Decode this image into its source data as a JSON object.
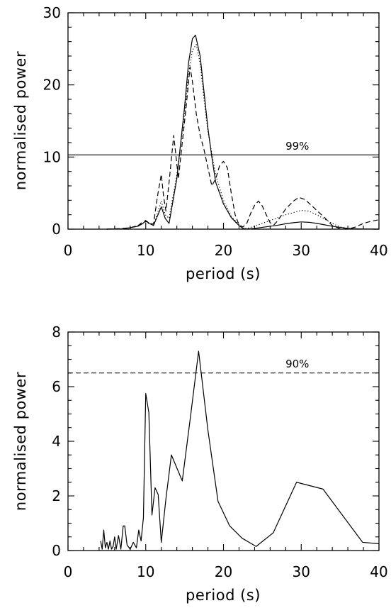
{
  "chart_data": [
    {
      "type": "line",
      "xlabel": "period (s)",
      "ylabel": "normalised power",
      "xlim": [
        0,
        40
      ],
      "ylim": [
        0,
        30
      ],
      "xticks": [
        "0",
        "10",
        "20",
        "30",
        "40"
      ],
      "yticks": [
        "0",
        "10",
        "20",
        "30"
      ],
      "grid": false,
      "legend": "none",
      "annotations": [
        {
          "text": "99%",
          "x": 29.5,
          "y": 11.0
        }
      ],
      "hlines": [
        {
          "y": 10.3,
          "style": "solid"
        }
      ],
      "series": [
        {
          "style": "solid",
          "points": [
            [
              5,
              0
            ],
            [
              7,
              0.05
            ],
            [
              8,
              0.2
            ],
            [
              9,
              0.4
            ],
            [
              9.5,
              0.7
            ],
            [
              10,
              1.1
            ],
            [
              10.5,
              0.8
            ],
            [
              11,
              0.5
            ],
            [
              11.5,
              1.8
            ],
            [
              12,
              3.1
            ],
            [
              12.5,
              1.5
            ],
            [
              13,
              0.8
            ],
            [
              14,
              7
            ],
            [
              15,
              17
            ],
            [
              15.5,
              23
            ],
            [
              16,
              26.4
            ],
            [
              16.4,
              26.9
            ],
            [
              17,
              24
            ],
            [
              17.5,
              19
            ],
            [
              18,
              14
            ],
            [
              18.5,
              10
            ],
            [
              19,
              6.5
            ],
            [
              20,
              3.5
            ],
            [
              21,
              1.6
            ],
            [
              22,
              0.5
            ],
            [
              22.5,
              0.1
            ],
            [
              23,
              0.03
            ],
            [
              24,
              0.1
            ],
            [
              25,
              0.25
            ],
            [
              26,
              0.4
            ],
            [
              27,
              0.55
            ],
            [
              28,
              0.75
            ],
            [
              29,
              0.9
            ],
            [
              30,
              1.0
            ],
            [
              31,
              0.95
            ],
            [
              32,
              0.8
            ],
            [
              33,
              0.6
            ],
            [
              34,
              0.4
            ],
            [
              35,
              0.25
            ],
            [
              36,
              0.1
            ],
            [
              37,
              0.05
            ],
            [
              38,
              0.02
            ],
            [
              39,
              0.01
            ],
            [
              40,
              0
            ]
          ]
        },
        {
          "style": "dotted",
          "points": [
            [
              5,
              0
            ],
            [
              7,
              0.05
            ],
            [
              8,
              0.2
            ],
            [
              9,
              0.5
            ],
            [
              10,
              1.0
            ],
            [
              10.5,
              0.7
            ],
            [
              11,
              0.6
            ],
            [
              11.5,
              2.2
            ],
            [
              12,
              3.9
            ],
            [
              12.5,
              2.0
            ],
            [
              13,
              1.5
            ],
            [
              14,
              7.5
            ],
            [
              15,
              16
            ],
            [
              15.5,
              21.5
            ],
            [
              16,
              24.8
            ],
            [
              16.5,
              25.6
            ],
            [
              17,
              23
            ],
            [
              17.5,
              18
            ],
            [
              18,
              13.5
            ],
            [
              19,
              7.5
            ],
            [
              20,
              4
            ],
            [
              21,
              1.8
            ],
            [
              22,
              0.6
            ],
            [
              22.6,
              0.05
            ],
            [
              23,
              0.1
            ],
            [
              24,
              0.4
            ],
            [
              25,
              0.8
            ],
            [
              26,
              1.2
            ],
            [
              27,
              1.6
            ],
            [
              28,
              2.0
            ],
            [
              29,
              2.3
            ],
            [
              30,
              2.6
            ],
            [
              31,
              2.5
            ],
            [
              32,
              2.0
            ],
            [
              33,
              1.4
            ],
            [
              34,
              0.8
            ],
            [
              35,
              0.3
            ],
            [
              36,
              0.1
            ],
            [
              37,
              0.02
            ],
            [
              40,
              0
            ]
          ]
        },
        {
          "style": "dashed",
          "points": [
            [
              5,
              0
            ],
            [
              7,
              0.1
            ],
            [
              8,
              0.2
            ],
            [
              9,
              0.5
            ],
            [
              9.5,
              0.9
            ],
            [
              10,
              1.2
            ],
            [
              10.5,
              0.8
            ],
            [
              11,
              0.7
            ],
            [
              11.5,
              4.5
            ],
            [
              12,
              7.6
            ],
            [
              12.3,
              4.5
            ],
            [
              12.6,
              2.5
            ],
            [
              13,
              6.5
            ],
            [
              13.6,
              13
            ],
            [
              14.2,
              7
            ],
            [
              14.6,
              11
            ],
            [
              15.2,
              17
            ],
            [
              15.7,
              22.5
            ],
            [
              16,
              20.5
            ],
            [
              16.5,
              16
            ],
            [
              17,
              13
            ],
            [
              17.5,
              11
            ],
            [
              18,
              8.5
            ],
            [
              18.5,
              6
            ],
            [
              19,
              7
            ],
            [
              19.5,
              8.8
            ],
            [
              20,
              9.4
            ],
            [
              20.5,
              8.5
            ],
            [
              21,
              5
            ],
            [
              21.5,
              2
            ],
            [
              22,
              0.6
            ],
            [
              22.5,
              0.3
            ],
            [
              23,
              0.8
            ],
            [
              23.5,
              2.2
            ],
            [
              24,
              3.3
            ],
            [
              24.5,
              3.9
            ],
            [
              25,
              3.2
            ],
            [
              25.5,
              2
            ],
            [
              26,
              0.9
            ],
            [
              26.5,
              0.6
            ],
            [
              27,
              1.2
            ],
            [
              28,
              2.8
            ],
            [
              29,
              3.9
            ],
            [
              29.7,
              4.4
            ],
            [
              30.5,
              4.1
            ],
            [
              31,
              3.6
            ],
            [
              32,
              2.6
            ],
            [
              33,
              1.6
            ],
            [
              34,
              0.5
            ],
            [
              35,
              0.05
            ],
            [
              36,
              0.02
            ],
            [
              37,
              0.3
            ],
            [
              38,
              0.8
            ],
            [
              39,
              1.1
            ],
            [
              40,
              1.3
            ]
          ]
        }
      ]
    },
    {
      "type": "line",
      "xlabel": "period (s)",
      "ylabel": "normalised power",
      "xlim": [
        0,
        40
      ],
      "ylim": [
        0,
        8
      ],
      "xticks": [
        "0",
        "10",
        "20",
        "30",
        "40"
      ],
      "yticks": [
        "0",
        "2",
        "4",
        "6",
        "8"
      ],
      "grid": false,
      "legend": "none",
      "annotations": [
        {
          "text": "90%",
          "x": 29.5,
          "y": 6.7
        }
      ],
      "hlines": [
        {
          "y": 6.5,
          "style": "dashed"
        }
      ],
      "series": [
        {
          "style": "solid",
          "points": [
            [
              4.2,
              0.35
            ],
            [
              4.4,
              0.05
            ],
            [
              4.6,
              0.75
            ],
            [
              4.8,
              0.1
            ],
            [
              5.0,
              0.3
            ],
            [
              5.2,
              0.05
            ],
            [
              5.4,
              0.35
            ],
            [
              5.6,
              0.05
            ],
            [
              5.8,
              0.15
            ],
            [
              6.0,
              0.5
            ],
            [
              6.2,
              0.05
            ],
            [
              6.5,
              0.55
            ],
            [
              6.8,
              0.05
            ],
            [
              7.1,
              0.9
            ],
            [
              7.3,
              0.9
            ],
            [
              7.6,
              0.2
            ],
            [
              8.0,
              0.05
            ],
            [
              8.4,
              0.3
            ],
            [
              8.8,
              0.1
            ],
            [
              9.1,
              0.75
            ],
            [
              9.4,
              0.35
            ],
            [
              9.7,
              1.2
            ],
            [
              10.0,
              5.75
            ],
            [
              10.4,
              5.05
            ],
            [
              10.8,
              1.3
            ],
            [
              11.2,
              2.3
            ],
            [
              11.6,
              2.05
            ],
            [
              12.0,
              0.3
            ],
            [
              12.6,
              1.9
            ],
            [
              13.3,
              3.5
            ],
            [
              14.7,
              2.55
            ],
            [
              15.8,
              5.0
            ],
            [
              16.8,
              7.3
            ],
            [
              18.0,
              4.4
            ],
            [
              19.3,
              1.8
            ],
            [
              20.8,
              0.9
            ],
            [
              22.4,
              0.45
            ],
            [
              24.2,
              0.15
            ],
            [
              26.4,
              0.65
            ],
            [
              29.4,
              2.5
            ],
            [
              32.8,
              2.25
            ],
            [
              37.9,
              0.3
            ],
            [
              40,
              0.25
            ]
          ]
        }
      ]
    }
  ]
}
